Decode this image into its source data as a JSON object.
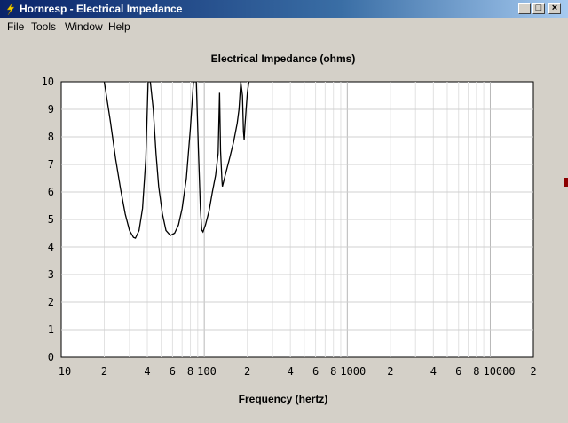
{
  "window": {
    "title": "Hornresp - Electrical Impedance",
    "icon": "lightning-icon",
    "controls": {
      "minimize": "_",
      "maximize": "□",
      "close": "×"
    }
  },
  "menu": [
    "File",
    "Tools",
    "Window",
    "Help"
  ],
  "chart_data": {
    "type": "line",
    "title": "Electrical Impedance (ohms)",
    "xlabel": "Frequency (hertz)",
    "ylabel": "",
    "xscale": "log",
    "xlim": [
      10,
      20000
    ],
    "ylim": [
      0,
      10
    ],
    "grid": true,
    "x_tick_labels": [
      {
        "value": 10,
        "label": "10"
      },
      {
        "value": 20,
        "label": "2"
      },
      {
        "value": 40,
        "label": "4"
      },
      {
        "value": 60,
        "label": "6"
      },
      {
        "value": 80,
        "label": "8"
      },
      {
        "value": 100,
        "label": "100"
      },
      {
        "value": 200,
        "label": "2"
      },
      {
        "value": 400,
        "label": "4"
      },
      {
        "value": 600,
        "label": "6"
      },
      {
        "value": 800,
        "label": "8"
      },
      {
        "value": 1000,
        "label": "1000"
      },
      {
        "value": 2000,
        "label": "2"
      },
      {
        "value": 4000,
        "label": "4"
      },
      {
        "value": 6000,
        "label": "6"
      },
      {
        "value": 8000,
        "label": "8"
      },
      {
        "value": 10000,
        "label": "10000"
      },
      {
        "value": 20000,
        "label": "2"
      }
    ],
    "y_ticks": [
      0,
      1,
      2,
      3,
      4,
      5,
      6,
      7,
      8,
      9,
      10
    ],
    "series": [
      {
        "color": "#000000",
        "points": [
          [
            20,
            10
          ],
          [
            22,
            8.6
          ],
          [
            24,
            7.2
          ],
          [
            26,
            6.1
          ],
          [
            28,
            5.2
          ],
          [
            30,
            4.6
          ],
          [
            32,
            4.35
          ],
          [
            33,
            4.32
          ],
          [
            35,
            4.6
          ],
          [
            37,
            5.4
          ],
          [
            39,
            7.2
          ],
          [
            40.5,
            10
          ],
          [
            42,
            10
          ],
          [
            44,
            9.0
          ],
          [
            46,
            7.4
          ],
          [
            48,
            6.2
          ],
          [
            51,
            5.2
          ],
          [
            54,
            4.6
          ],
          [
            58,
            4.42
          ],
          [
            62,
            4.5
          ],
          [
            66,
            4.8
          ],
          [
            70,
            5.4
          ],
          [
            75,
            6.5
          ],
          [
            80,
            8.3
          ],
          [
            84,
            10
          ],
          [
            88,
            10
          ],
          [
            91,
            7.5
          ],
          [
            94,
            5.4
          ],
          [
            96,
            4.62
          ],
          [
            98,
            4.55
          ],
          [
            102,
            4.8
          ],
          [
            108,
            5.3
          ],
          [
            114,
            6.0
          ],
          [
            120,
            6.6
          ],
          [
            125,
            7.4
          ],
          [
            128,
            9.6
          ],
          [
            130,
            7.5
          ],
          [
            133,
            6.4
          ],
          [
            134,
            6.2
          ],
          [
            140,
            6.6
          ],
          [
            150,
            7.2
          ],
          [
            160,
            7.8
          ],
          [
            170,
            8.5
          ],
          [
            175,
            9.0
          ],
          [
            180,
            10
          ],
          [
            185,
            9.5
          ],
          [
            188,
            8.2
          ],
          [
            190,
            7.9
          ],
          [
            192,
            8.3
          ],
          [
            196,
            9.0
          ],
          [
            200,
            9.6
          ],
          [
            205,
            10
          ]
        ]
      }
    ]
  }
}
